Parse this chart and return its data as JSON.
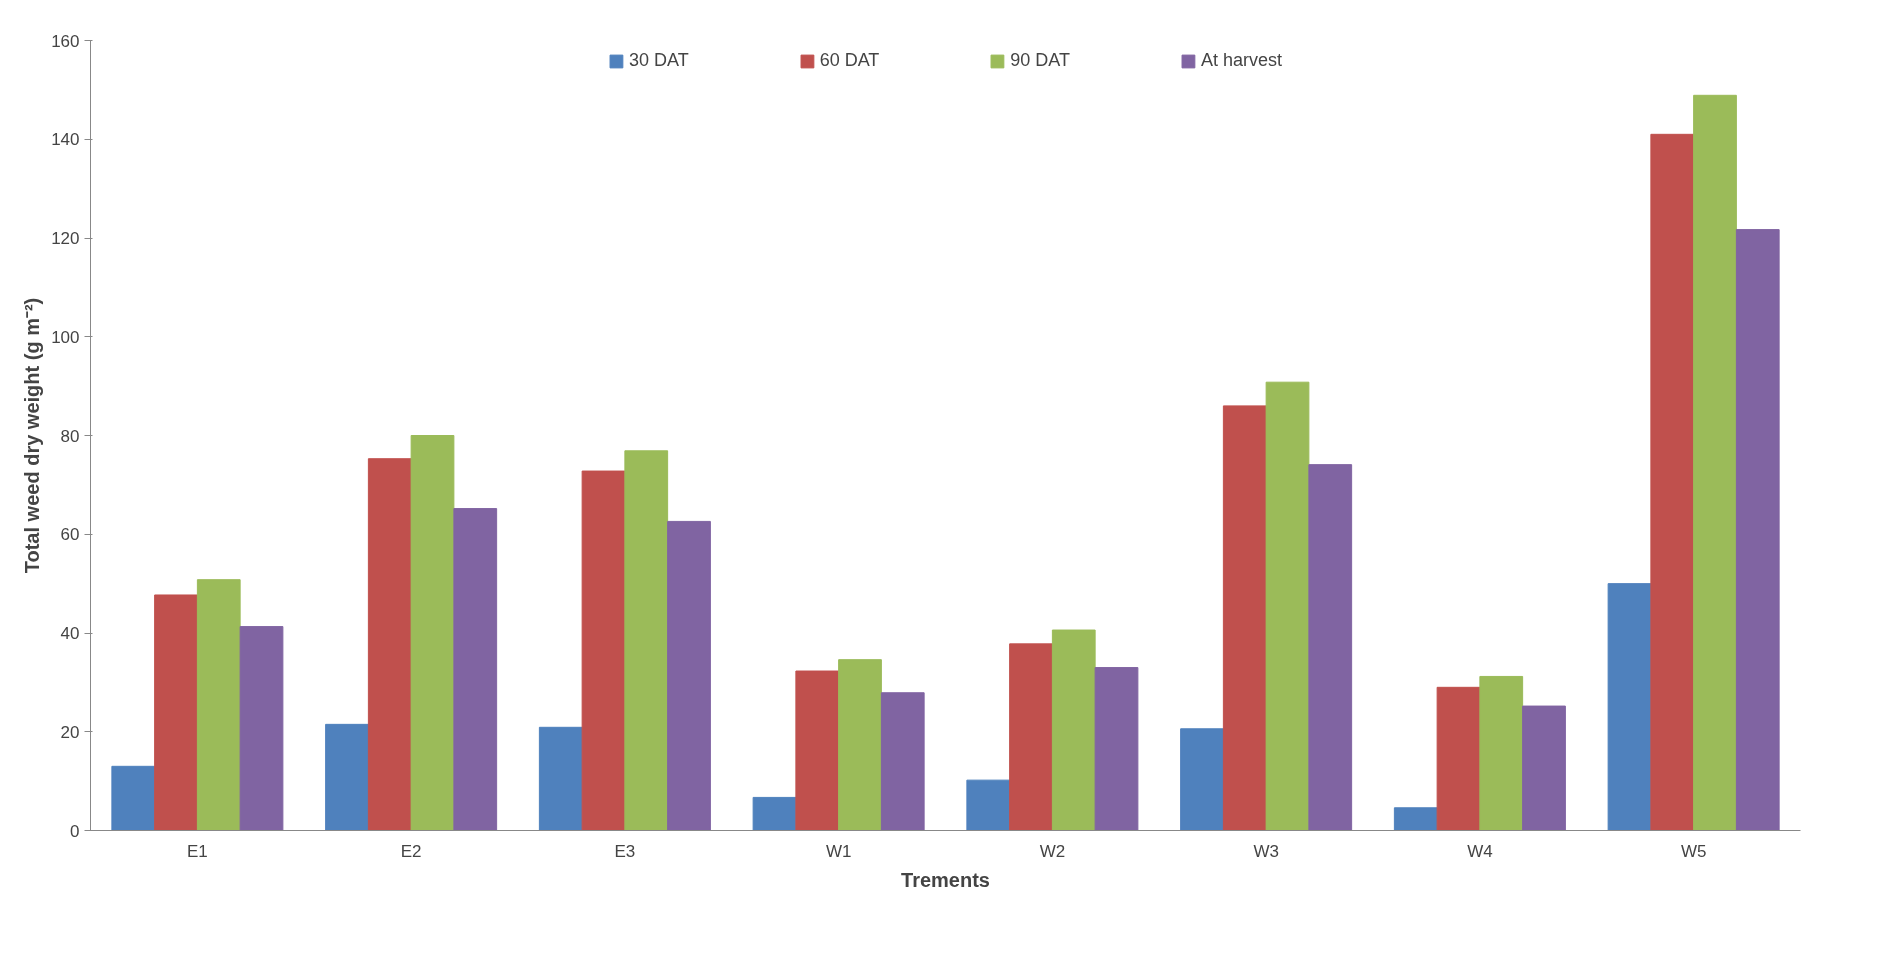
{
  "chart_data": {
    "type": "bar",
    "xlabel": "Trements",
    "ylabel": "Total weed dry weight (g m⁻²)",
    "categories": [
      "E1",
      "E2",
      "E3",
      "W1",
      "W2",
      "W3",
      "W4",
      "W5"
    ],
    "series": [
      {
        "name": "30 DAT",
        "color": "#4f81bd",
        "values": [
          13,
          21.5,
          20.9,
          6.7,
          10.2,
          20.6,
          4.6,
          50
        ]
      },
      {
        "name": "60 DAT",
        "color": "#c0504d",
        "values": [
          47.7,
          75.3,
          72.8,
          32.3,
          37.8,
          86,
          29,
          141
        ]
      },
      {
        "name": "90 DAT",
        "color": "#9bbb59",
        "values": [
          50.8,
          80,
          76.9,
          34.6,
          40.6,
          90.8,
          31.2,
          148.9
        ]
      },
      {
        "name": "At harvest",
        "color": "#8064a2",
        "values": [
          41.3,
          65.2,
          62.6,
          27.9,
          33,
          74.1,
          25.2,
          121.7
        ]
      }
    ],
    "ylim": [
      0,
      160
    ],
    "yticks": [
      0,
      20,
      40,
      60,
      80,
      100,
      120,
      140,
      160
    ],
    "grid": false,
    "legend": "top"
  }
}
